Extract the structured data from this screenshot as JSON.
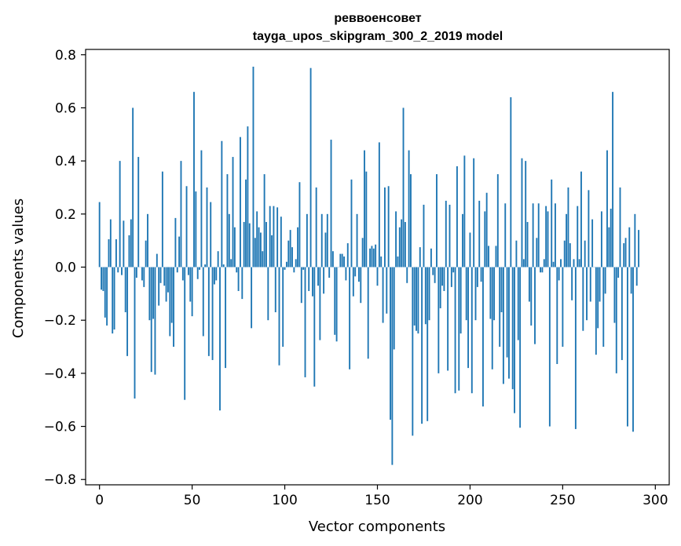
{
  "chart_data": {
    "type": "bar",
    "title": "реввоенсовет",
    "subtitle": "tayga_upos_skipgram_300_2_2019 model",
    "xlabel": "Vector components",
    "ylabel": "Components values",
    "xlim": [
      -7.5,
      307.5
    ],
    "ylim": [
      -0.82,
      0.82
    ],
    "x_ticks": [
      0,
      50,
      100,
      150,
      200,
      250,
      300
    ],
    "x_tick_labels": [
      "0",
      "50",
      "100",
      "150",
      "200",
      "250",
      "300"
    ],
    "y_ticks": [
      -0.8,
      -0.6,
      -0.4,
      -0.2,
      0.0,
      0.2,
      0.4,
      0.6,
      0.8
    ],
    "y_tick_labels": [
      "−0.8",
      "−0.6",
      "−0.4",
      "−0.2",
      "0.0",
      "0.2",
      "0.4",
      "0.6",
      "0.8"
    ],
    "bar_color": "#1f77b4",
    "x": "0..299 (component index)",
    "values": [
      0.245,
      -0.085,
      -0.09,
      -0.19,
      -0.22,
      0.105,
      0.18,
      -0.25,
      -0.235,
      0.105,
      -0.02,
      0.4,
      -0.03,
      0.175,
      -0.17,
      -0.335,
      0.12,
      0.18,
      0.6,
      -0.495,
      -0.04,
      0.415,
      0.0,
      -0.05,
      -0.075,
      0.1,
      0.2,
      -0.2,
      -0.395,
      -0.195,
      -0.405,
      0.05,
      -0.145,
      -0.06,
      0.36,
      -0.07,
      -0.13,
      -0.095,
      -0.26,
      -0.21,
      -0.3,
      0.185,
      -0.02,
      0.115,
      0.4,
      -0.05,
      -0.5,
      0.305,
      -0.03,
      -0.13,
      -0.185,
      0.66,
      0.285,
      -0.045,
      -0.01,
      0.44,
      -0.26,
      0.01,
      0.3,
      -0.335,
      0.245,
      -0.35,
      -0.065,
      -0.05,
      0.06,
      -0.54,
      0.475,
      0.01,
      -0.38,
      0.35,
      0.2,
      0.03,
      0.415,
      0.15,
      -0.02,
      -0.09,
      0.49,
      -0.12,
      0.17,
      0.33,
      0.53,
      0.165,
      -0.23,
      0.755,
      0.11,
      0.21,
      0.15,
      0.13,
      0.06,
      0.35,
      0.17,
      -0.2,
      0.23,
      0.12,
      0.23,
      -0.17,
      0.225,
      -0.37,
      0.19,
      -0.3,
      -0.01,
      0.02,
      0.1,
      0.14,
      0.075,
      -0.02,
      0.03,
      0.15,
      0.32,
      -0.135,
      -0.01,
      -0.415,
      0.2,
      -0.09,
      0.75,
      -0.11,
      -0.45,
      0.3,
      -0.07,
      -0.275,
      0.2,
      -0.1,
      0.13,
      0.2,
      -0.04,
      0.48,
      0.06,
      -0.255,
      -0.28,
      0.0,
      0.05,
      0.05,
      0.04,
      -0.05,
      0.09,
      -0.385,
      0.33,
      -0.11,
      -0.035,
      0.2,
      -0.055,
      -0.135,
      0.11,
      0.44,
      0.36,
      -0.345,
      0.07,
      0.08,
      0.07,
      0.085,
      -0.07,
      0.47,
      0.04,
      -0.21,
      0.3,
      -0.175,
      0.305,
      -0.575,
      -0.745,
      -0.31,
      0.21,
      0.04,
      0.15,
      0.18,
      0.6,
      0.17,
      -0.06,
      0.44,
      0.35,
      -0.635,
      -0.22,
      -0.24,
      -0.25,
      0.075,
      -0.59,
      0.235,
      -0.215,
      -0.58,
      -0.2,
      0.07,
      -0.03,
      -0.06,
      0.35,
      -0.4,
      -0.155,
      -0.07,
      -0.09,
      0.25,
      -0.39,
      0.235,
      -0.075,
      -0.02,
      -0.475,
      0.38,
      -0.465,
      -0.25,
      0.2,
      0.42,
      -0.2,
      -0.38,
      0.13,
      -0.475,
      0.41,
      -0.2,
      -0.075,
      0.25,
      -0.055,
      -0.525,
      0.21,
      0.28,
      0.08,
      -0.195,
      -0.385,
      -0.2,
      0.08,
      0.35,
      -0.3,
      -0.17,
      -0.44,
      0.24,
      -0.34,
      -0.42,
      0.64,
      -0.46,
      -0.55,
      0.1,
      -0.275,
      -0.605,
      0.41,
      0.03,
      0.4,
      0.17,
      -0.13,
      -0.22,
      0.24,
      -0.29,
      0.11,
      0.24,
      -0.02,
      -0.02,
      0.03,
      0.23,
      0.21,
      -0.6,
      0.33,
      0.02,
      0.24,
      -0.365,
      -0.05,
      0.03,
      -0.3,
      0.1,
      0.2,
      0.3,
      0.09,
      -0.125,
      0.03,
      -0.61,
      0.23,
      0.03,
      0.36,
      -0.24,
      0.1,
      -0.2,
      0.29,
      -0.13,
      0.18,
      0.0,
      -0.33,
      -0.23,
      -0.13,
      0.21,
      -0.3,
      -0.1,
      0.44,
      0.15,
      0.22,
      0.66,
      -0.21,
      -0.4,
      -0.04,
      0.3,
      -0.35,
      0.09,
      0.11,
      -0.6,
      0.15,
      -0.1,
      -0.62,
      0.2,
      -0.07,
      0.14
    ]
  }
}
